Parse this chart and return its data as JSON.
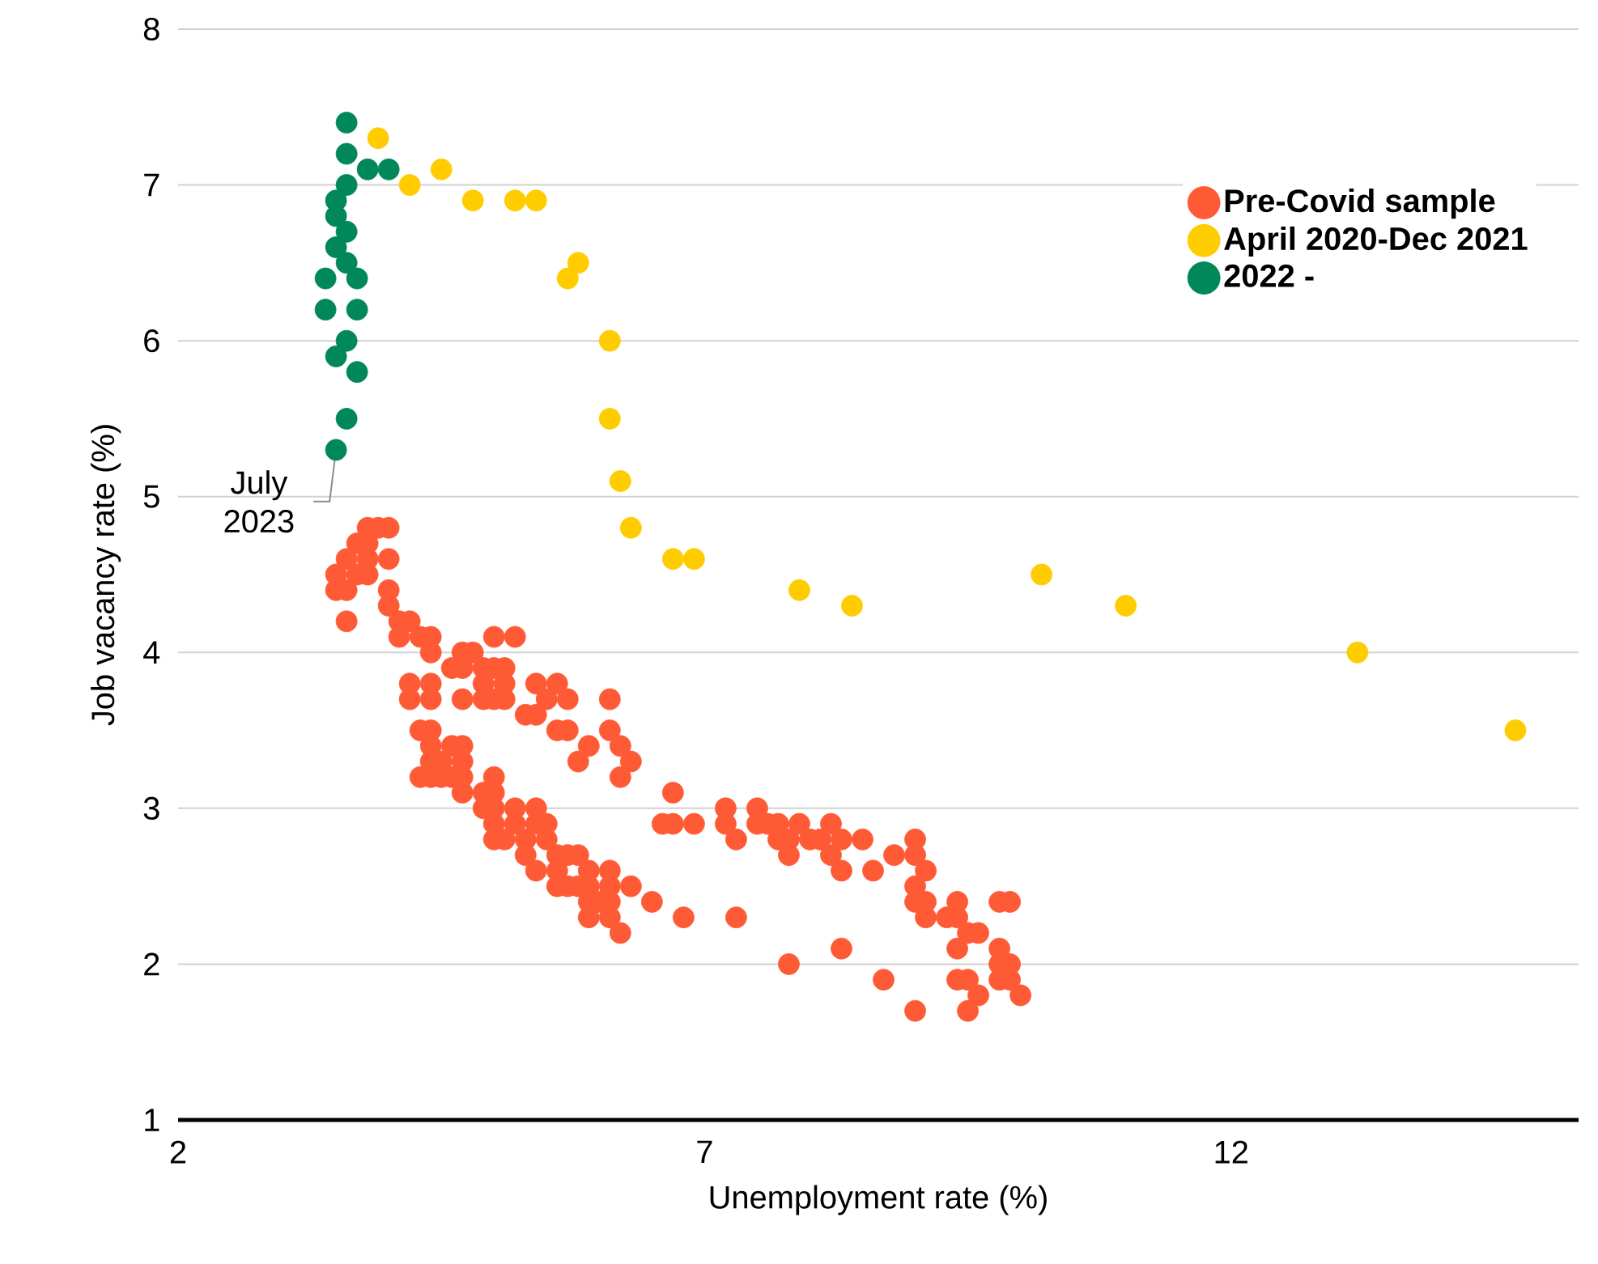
{
  "chart_data": {
    "type": "scatter",
    "xlabel": "Unemployment rate (%)",
    "ylabel": "Job vacancy rate (%)",
    "xlim": [
      2,
      15.3
    ],
    "ylim": [
      1,
      8
    ],
    "xticks": [
      2,
      7,
      12
    ],
    "yticks": [
      1,
      2,
      3,
      4,
      5,
      6,
      7,
      8
    ],
    "grid": "y",
    "legend": "top right",
    "marker": "circle",
    "annotations": [
      {
        "text": "July 2023",
        "x": 3.5,
        "y": 5.3
      }
    ],
    "series": [
      {
        "name": "Pre-Covid sample",
        "color": "#ff5a36",
        "x": [
          3.8,
          3.9,
          4.0,
          3.7,
          3.8,
          3.6,
          3.8,
          4.0,
          3.5,
          3.7,
          3.8,
          3.5,
          3.6,
          4.0,
          4.0,
          3.6,
          4.1,
          4.2,
          4.1,
          4.3,
          4.4,
          5.0,
          5.2,
          4.4,
          4.7,
          4.8,
          4.6,
          4.7,
          4.9,
          5.0,
          5.1,
          4.2,
          4.4,
          4.9,
          5.1,
          5.4,
          5.6,
          4.2,
          4.4,
          4.7,
          4.9,
          5.0,
          5.1,
          5.5,
          5.7,
          6.1,
          5.3,
          5.4,
          4.3,
          4.4,
          5.6,
          5.7,
          6.1,
          4.4,
          4.6,
          4.7,
          5.9,
          6.2,
          4.4,
          4.5,
          4.7,
          5.8,
          6.3,
          4.3,
          4.4,
          4.5,
          4.6,
          4.7,
          5.0,
          6.2,
          4.7,
          4.9,
          5.0,
          6.7,
          4.9,
          5.0,
          5.2,
          5.4,
          7.2,
          7.5,
          5.0,
          5.2,
          5.4,
          5.5,
          6.6,
          6.7,
          6.9,
          7.2,
          7.5,
          7.6,
          7.7,
          7.9,
          8.2,
          5.0,
          5.1,
          5.3,
          5.5,
          7.3,
          7.7,
          7.8,
          8.0,
          8.1,
          8.3,
          8.5,
          9.0,
          5.3,
          5.6,
          5.7,
          5.8,
          7.8,
          8.2,
          8.8,
          9.0,
          5.4,
          5.6,
          5.9,
          6.1,
          8.3,
          8.6,
          9.1,
          5.6,
          5.7,
          5.8,
          5.9,
          6.1,
          6.3,
          9.0,
          5.9,
          6.0,
          6.1,
          6.5,
          9.0,
          9.1,
          9.4,
          9.8,
          9.9,
          5.9,
          6.1,
          6.8,
          7.3,
          9.1,
          9.3,
          9.4,
          6.2,
          9.5,
          9.6,
          8.3,
          9.4,
          9.8,
          7.8,
          9.8,
          9.9,
          8.7,
          9.4,
          9.5,
          9.8,
          9.9,
          9.6,
          10.0,
          9.0,
          9.5
        ],
        "values": [
          4.8,
          4.8,
          4.8,
          4.7,
          4.7,
          4.6,
          4.6,
          4.6,
          4.5,
          4.5,
          4.5,
          4.4,
          4.4,
          4.4,
          4.3,
          4.2,
          4.2,
          4.2,
          4.1,
          4.1,
          4.1,
          4.1,
          4.1,
          4.0,
          4.0,
          4.0,
          3.9,
          3.9,
          3.9,
          3.9,
          3.9,
          3.8,
          3.8,
          3.8,
          3.8,
          3.8,
          3.8,
          3.7,
          3.7,
          3.7,
          3.7,
          3.7,
          3.7,
          3.7,
          3.7,
          3.7,
          3.6,
          3.6,
          3.5,
          3.5,
          3.5,
          3.5,
          3.5,
          3.4,
          3.4,
          3.4,
          3.4,
          3.4,
          3.3,
          3.3,
          3.3,
          3.3,
          3.3,
          3.2,
          3.2,
          3.2,
          3.2,
          3.2,
          3.2,
          3.2,
          3.1,
          3.1,
          3.1,
          3.1,
          3.0,
          3.0,
          3.0,
          3.0,
          3.0,
          3.0,
          2.9,
          2.9,
          2.9,
          2.9,
          2.9,
          2.9,
          2.9,
          2.9,
          2.9,
          2.9,
          2.9,
          2.9,
          2.9,
          2.8,
          2.8,
          2.8,
          2.8,
          2.8,
          2.8,
          2.8,
          2.8,
          2.8,
          2.8,
          2.8,
          2.8,
          2.7,
          2.7,
          2.7,
          2.7,
          2.7,
          2.7,
          2.7,
          2.7,
          2.6,
          2.6,
          2.6,
          2.6,
          2.6,
          2.6,
          2.6,
          2.5,
          2.5,
          2.5,
          2.5,
          2.5,
          2.5,
          2.5,
          2.4,
          2.4,
          2.4,
          2.4,
          2.4,
          2.4,
          2.4,
          2.4,
          2.4,
          2.3,
          2.3,
          2.3,
          2.3,
          2.3,
          2.3,
          2.3,
          2.2,
          2.2,
          2.2,
          2.1,
          2.1,
          2.1,
          2.0,
          2.0,
          2.0,
          1.9,
          1.9,
          1.9,
          1.9,
          1.9,
          1.8,
          1.8,
          1.7,
          1.7
        ]
      },
      {
        "name": "April 2020-Dec 2021",
        "color": "#ffcc00",
        "x": [
          3.9,
          4.2,
          4.5,
          4.8,
          5.2,
          5.4,
          5.8,
          5.7,
          6.1,
          6.1,
          6.2,
          6.3,
          6.7,
          6.9,
          7.9,
          8.4,
          10.2,
          11.0,
          13.2,
          14.7
        ],
        "values": [
          7.3,
          7.0,
          7.1,
          6.9,
          6.9,
          6.9,
          6.5,
          6.4,
          6.0,
          5.5,
          5.1,
          4.8,
          4.6,
          4.6,
          4.4,
          4.3,
          4.5,
          4.3,
          4.0,
          3.5
        ]
      },
      {
        "name": "2022 -",
        "color": "#00875a",
        "x": [
          3.6,
          3.6,
          3.8,
          4.0,
          3.6,
          3.5,
          3.5,
          3.6,
          3.5,
          3.6,
          3.4,
          3.7,
          3.4,
          3.7,
          3.6,
          3.5,
          3.7,
          3.6,
          3.5
        ],
        "values": [
          7.4,
          7.2,
          7.1,
          7.1,
          7.0,
          6.9,
          6.8,
          6.7,
          6.6,
          6.5,
          6.4,
          6.4,
          6.2,
          6.2,
          6.0,
          5.9,
          5.8,
          5.5,
          5.3
        ]
      }
    ]
  }
}
